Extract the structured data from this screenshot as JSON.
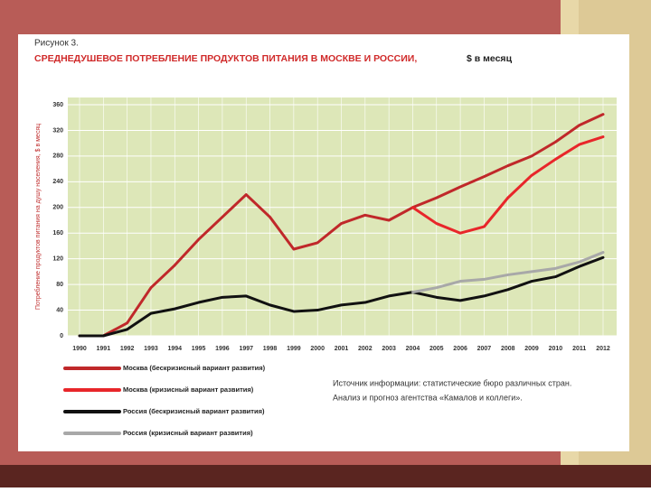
{
  "chart_data": {
    "type": "line",
    "figure_label": "Рисунок 3.",
    "title": "СРЕДНЕДУШЕВОЕ ПОТРЕБЛЕНИЕ ПРОДУКТОВ ПИТАНИЯ В МОСКВЕ И РОССИИ,",
    "title_unit": "$ в месяц",
    "ylabel": "Потребление продуктов питания на душу населения, $ в месяц",
    "categories": [
      "1990",
      "1991",
      "1992",
      "1993",
      "1994",
      "1995",
      "1996",
      "1997",
      "1998",
      "1999",
      "2000",
      "2001",
      "2002",
      "2003",
      "2004",
      "2005",
      "2006",
      "2007",
      "2008",
      "2009",
      "2010",
      "2011",
      "2012"
    ],
    "series": [
      {
        "name": "Москва (бескризисный вариант развития)",
        "color": "#c0282a",
        "values": [
          0,
          0,
          20,
          75,
          110,
          150,
          185,
          220,
          185,
          135,
          145,
          175,
          188,
          180,
          200,
          215,
          232,
          248,
          265,
          280,
          302,
          328,
          345
        ]
      },
      {
        "name": "Москва (кризисный вариант развития)",
        "color": "#e8262a",
        "values": [
          null,
          null,
          null,
          null,
          null,
          null,
          null,
          null,
          null,
          null,
          null,
          null,
          null,
          null,
          200,
          175,
          160,
          170,
          215,
          250,
          275,
          298,
          310
        ]
      },
      {
        "name": "Россия (бескризисный вариант развития)",
        "color": "#111111",
        "values": [
          0,
          0,
          10,
          35,
          42,
          52,
          60,
          62,
          48,
          38,
          40,
          48,
          52,
          62,
          68,
          60,
          55,
          62,
          72,
          85,
          92,
          108,
          122
        ]
      },
      {
        "name": "Россия (кризисный вариант развития)",
        "color": "#a8a8a8",
        "values": [
          null,
          null,
          null,
          null,
          null,
          null,
          null,
          null,
          null,
          null,
          null,
          null,
          null,
          null,
          68,
          75,
          85,
          88,
          95,
          100,
          105,
          115,
          130
        ]
      }
    ],
    "ylim": [
      0,
      360
    ],
    "yticks": [
      0,
      40,
      80,
      120,
      160,
      200,
      240,
      280,
      320,
      360
    ],
    "grid": true,
    "source": [
      "Источник информации: статистические бюро различных стран.",
      "Анализ и прогноз агентства «Камалов и коллеги»."
    ]
  }
}
